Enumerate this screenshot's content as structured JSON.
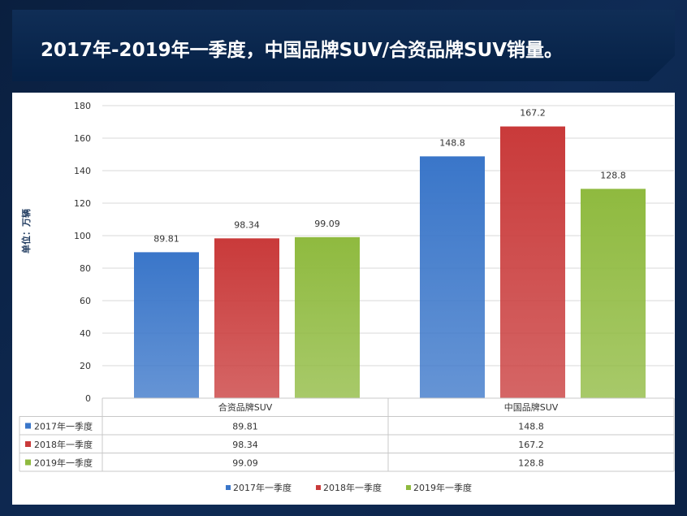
{
  "page": {
    "title": "2017年-2019年一季度，中国品牌SUV/合资品牌SUV销量。"
  },
  "chart_data": {
    "type": "bar",
    "ylabel": "单位：万辆",
    "ylim": [
      0,
      180
    ],
    "ytick_step": 20,
    "categories": [
      "合资品牌SUV",
      "中国品牌SUV"
    ],
    "series": [
      {
        "name": "2017年一季度",
        "values": [
          89.81,
          148.8
        ],
        "value_labels": [
          "89.81",
          "148.8"
        ],
        "color": "#3a76c9"
      },
      {
        "name": "2018年一季度",
        "values": [
          98.34,
          167.2
        ],
        "value_labels": [
          "98.34",
          "167.2"
        ],
        "color": "#c93a3a"
      },
      {
        "name": "2019年一季度",
        "values": [
          99.09,
          128.8
        ],
        "value_labels": [
          "99.09",
          "128.8"
        ],
        "color": "#8fba3f"
      }
    ],
    "data_table": true,
    "legend": "bottom",
    "grid": true
  }
}
